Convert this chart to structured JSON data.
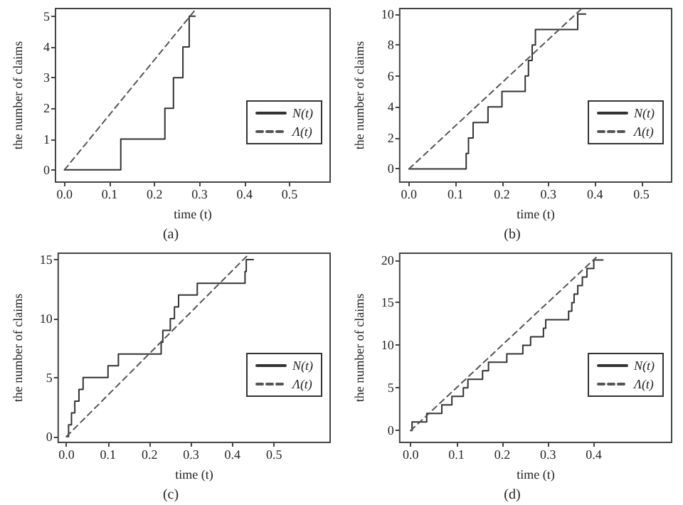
{
  "chart_data": [
    {
      "type": "step",
      "xlabel": "time (t)",
      "ylabel": "the number of claims",
      "annotations": [
        "(a)"
      ],
      "xlim": [
        -0.02,
        0.59
      ],
      "ylim": [
        -0.4,
        5.25
      ],
      "xticks": [
        {
          "value": 0,
          "label": "0.0"
        },
        {
          "value": 0.1,
          "label": "0.1"
        },
        {
          "value": 0.2,
          "label": "0.2"
        },
        {
          "value": 0.3,
          "label": "0.3"
        },
        {
          "value": 0.4,
          "label": "0.4"
        },
        {
          "value": 0.5,
          "label": "0.5"
        }
      ],
      "yticks": [
        0,
        1,
        2,
        3,
        4,
        5
      ],
      "grid": false,
      "legend": "right",
      "marker": "none",
      "series": [
        {
          "name": "N(t)",
          "color": "#333333",
          "line_style": "solid",
          "x": [
            0,
            0.125,
            0.223,
            0.242,
            0.263,
            0.277,
            0.29
          ],
          "values": [
            0,
            1,
            2,
            3,
            4,
            5,
            5
          ]
        },
        {
          "name": "Λ(t)",
          "type": "line",
          "color": "#555555",
          "line_style": "dashed",
          "x": [
            0,
            0.29
          ],
          "values": [
            0,
            5.2
          ]
        }
      ]
    },
    {
      "type": "step",
      "xlabel": "time (t)",
      "ylabel": "the number of claims",
      "annotations": [
        "(b)"
      ],
      "xlim": [
        -0.02,
        0.565
      ],
      "ylim": [
        -0.85,
        10.35
      ],
      "xticks": [
        {
          "value": 0,
          "label": "0.0"
        },
        {
          "value": 0.1,
          "label": "0.1"
        },
        {
          "value": 0.2,
          "label": "0.2"
        },
        {
          "value": 0.3,
          "label": "0.3"
        },
        {
          "value": 0.4,
          "label": "0.4"
        },
        {
          "value": 0.5,
          "label": "0.5"
        }
      ],
      "yticks": [
        0,
        2,
        4,
        6,
        8,
        10
      ],
      "grid": false,
      "legend": "right",
      "marker": "none",
      "series": [
        {
          "name": "N(t)",
          "color": "#333333",
          "line_style": "solid",
          "x": [
            0,
            0.123,
            0.128,
            0.138,
            0.17,
            0.2,
            0.25,
            0.257,
            0.265,
            0.272,
            0.363,
            0.38
          ],
          "values": [
            0,
            1,
            2,
            3,
            4,
            5,
            6,
            7,
            8,
            9,
            10,
            10
          ]
        },
        {
          "name": "Λ(t)",
          "type": "line",
          "color": "#555555",
          "line_style": "dashed",
          "x": [
            0,
            0.37
          ],
          "values": [
            0,
            10.3
          ]
        }
      ]
    },
    {
      "type": "step",
      "xlabel": "time (t)",
      "ylabel": "the number of claims",
      "annotations": [
        "(c)"
      ],
      "xlim": [
        -0.02,
        0.635
      ],
      "ylim": [
        -0.5,
        15.55
      ],
      "xticks": [
        {
          "value": 0,
          "label": "0.0"
        },
        {
          "value": 0.1,
          "label": "0.1"
        },
        {
          "value": 0.2,
          "label": "0.2"
        },
        {
          "value": 0.3,
          "label": "0.3"
        },
        {
          "value": 0.4,
          "label": "0.4"
        },
        {
          "value": 0.5,
          "label": "0.5"
        }
      ],
      "yticks": [
        0,
        5,
        10,
        15
      ],
      "grid": false,
      "legend": "right",
      "marker": "none",
      "series": [
        {
          "name": "N(t)",
          "color": "#333333",
          "line_style": "solid",
          "x": [
            0,
            0.005,
            0.012,
            0.02,
            0.03,
            0.04,
            0.1,
            0.125,
            0.228,
            0.232,
            0.25,
            0.26,
            0.27,
            0.315,
            0.43,
            0.433,
            0.45
          ],
          "values": [
            0,
            1,
            2,
            3,
            4,
            5,
            6,
            7,
            8,
            9,
            10,
            11,
            12,
            13,
            14,
            15,
            15
          ]
        },
        {
          "name": "Λ(t)",
          "type": "line",
          "color": "#555555",
          "line_style": "dashed",
          "x": [
            0,
            0.44
          ],
          "values": [
            0,
            15.5
          ]
        }
      ]
    },
    {
      "type": "step",
      "xlabel": "time (t)",
      "ylabel": "the number of claims",
      "annotations": [
        "(d)"
      ],
      "xlim": [
        -0.024,
        0.57
      ],
      "ylim": [
        -1.4,
        20.8
      ],
      "xticks": [
        {
          "value": 0,
          "label": "0.0"
        },
        {
          "value": 0.1,
          "label": "0.1"
        },
        {
          "value": 0.2,
          "label": "0.2"
        },
        {
          "value": 0.3,
          "label": "0.3"
        },
        {
          "value": 0.4,
          "label": "0.4"
        }
      ],
      "yticks": [
        0,
        5,
        10,
        15,
        20
      ],
      "grid": false,
      "legend": "right",
      "marker": "none",
      "series": [
        {
          "name": "N(t)",
          "color": "#333333",
          "line_style": "solid",
          "x": [
            0,
            0.003,
            0.035,
            0.068,
            0.09,
            0.115,
            0.125,
            0.157,
            0.17,
            0.21,
            0.245,
            0.262,
            0.29,
            0.295,
            0.345,
            0.352,
            0.357,
            0.365,
            0.375,
            0.385,
            0.4,
            0.42
          ],
          "values": [
            0,
            1,
            2,
            3,
            4,
            5,
            6,
            7,
            8,
            9,
            10,
            11,
            12,
            13,
            14,
            15,
            16,
            17,
            18,
            19,
            20,
            20
          ]
        },
        {
          "name": "Λ(t)",
          "type": "line",
          "color": "#555555",
          "line_style": "dashed",
          "x": [
            0,
            0.405
          ],
          "values": [
            0,
            20.3
          ]
        }
      ]
    }
  ]
}
